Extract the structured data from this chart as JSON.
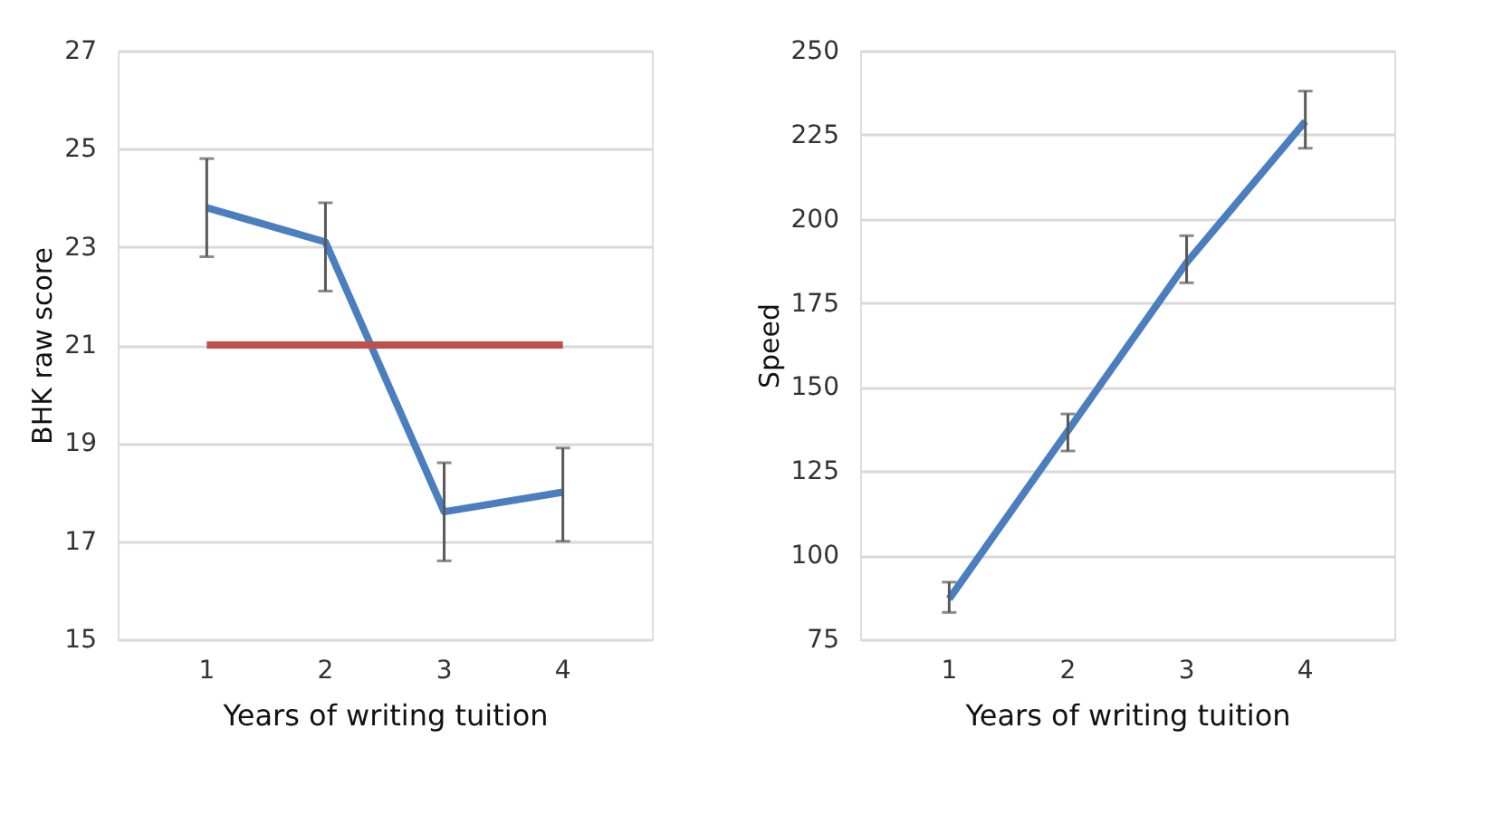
{
  "chart_data": [
    {
      "type": "line",
      "xlabel": "Years of writing tuition",
      "ylabel": "BHK raw score",
      "categories": [
        "1",
        "2",
        "3",
        "4"
      ],
      "ylim": [
        15,
        27
      ],
      "yticks": [
        15,
        17,
        19,
        21,
        23,
        25,
        27
      ],
      "grid": "y",
      "marker": "none",
      "line_style": "solid",
      "series": [
        {
          "color": "#4a7ebf",
          "values": [
            23.8,
            23.1,
            17.6,
            18.0
          ],
          "errors": [
            [
              22.8,
              24.8
            ],
            [
              22.1,
              23.9
            ],
            [
              16.6,
              18.6
            ],
            [
              17.0,
              18.9
            ]
          ]
        },
        {
          "color": "#c0504d",
          "values": [
            21,
            21,
            21,
            21
          ]
        }
      ]
    },
    {
      "type": "line",
      "xlabel": "Years of writing tuition",
      "ylabel": "Speed",
      "categories": [
        "1",
        "2",
        "3",
        "4"
      ],
      "ylim": [
        75,
        250
      ],
      "yticks": [
        75,
        100,
        125,
        150,
        175,
        200,
        225,
        250
      ],
      "grid": "y",
      "marker": "none",
      "line_style": "solid",
      "series": [
        {
          "color": "#4a7ebf",
          "values": [
            87,
            137,
            187,
            229
          ],
          "errors": [
            [
              83,
              92
            ],
            [
              131,
              142
            ],
            [
              181,
              195
            ],
            [
              221,
              238
            ]
          ]
        }
      ]
    }
  ]
}
